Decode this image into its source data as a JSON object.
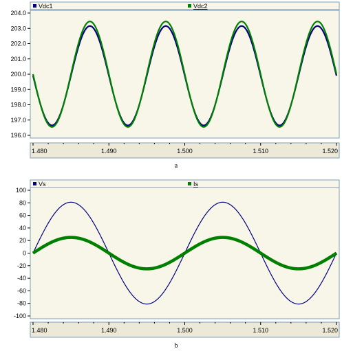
{
  "panels": [
    {
      "caption": "a",
      "legend": [
        {
          "label": "Vdc1",
          "underlined": false
        },
        {
          "label": "Vdc2",
          "underlined": true
        }
      ]
    },
    {
      "caption": "b",
      "legend": [
        {
          "label": "Vs",
          "underlined": false
        },
        {
          "label": "Is",
          "underlined": true
        }
      ]
    }
  ],
  "colors": {
    "plot_bg": "#f8f6e8",
    "legend_bg": "#f8f6e8",
    "series_blue": "#000080",
    "series_green": "#008000",
    "axis_bg": "#ece9d8",
    "frame": "#7f9db9",
    "grid": "#d4d0c0"
  },
  "chart_data": [
    {
      "type": "line",
      "xlim": [
        1.48,
        1.52
      ],
      "ylim": [
        196.0,
        204.0
      ],
      "x_ticks": [
        "1.480",
        "1.490",
        "1.500",
        "1.510",
        "1.520"
      ],
      "y_ticks": [
        "196.0",
        "197.0",
        "198.0",
        "199.0",
        "200.0",
        "201.0",
        "202.0",
        "203.0",
        "204.0"
      ],
      "legend_position": "top",
      "series": [
        {
          "name": "Vdc1",
          "color": "#000080",
          "waveform": "sine",
          "mean": 199.9,
          "amplitude": 3.25,
          "frequency_hz": 100,
          "peak_times": [
            1.4875,
            1.4975,
            1.5075,
            1.5175
          ]
        },
        {
          "name": "Vdc2",
          "color": "#008000",
          "waveform": "sine",
          "mean": 200.0,
          "amplitude": 3.45,
          "frequency_hz": 100,
          "peak_times": [
            1.4875,
            1.4975,
            1.5075,
            1.5175
          ]
        }
      ]
    },
    {
      "type": "line",
      "xlim": [
        1.48,
        1.52
      ],
      "ylim": [
        -100,
        100
      ],
      "x_ticks": [
        "1.480",
        "1.490",
        "1.500",
        "1.510",
        "1.520"
      ],
      "y_ticks": [
        "100",
        "80",
        "60",
        "40",
        "20",
        "0",
        "-20",
        "-40",
        "-60",
        "-80",
        "-100"
      ],
      "legend_position": "top",
      "series": [
        {
          "name": "Vs",
          "color": "#000080",
          "waveform": "sine",
          "amplitude": 81,
          "frequency_hz": 50,
          "peak_times": [
            1.485,
            1.505
          ]
        },
        {
          "name": "Is",
          "color": "#008000",
          "waveform": "sine",
          "amplitude": 25,
          "frequency_hz": 50,
          "ripple": 2.5,
          "peak_times": [
            1.485,
            1.505
          ]
        }
      ]
    }
  ]
}
